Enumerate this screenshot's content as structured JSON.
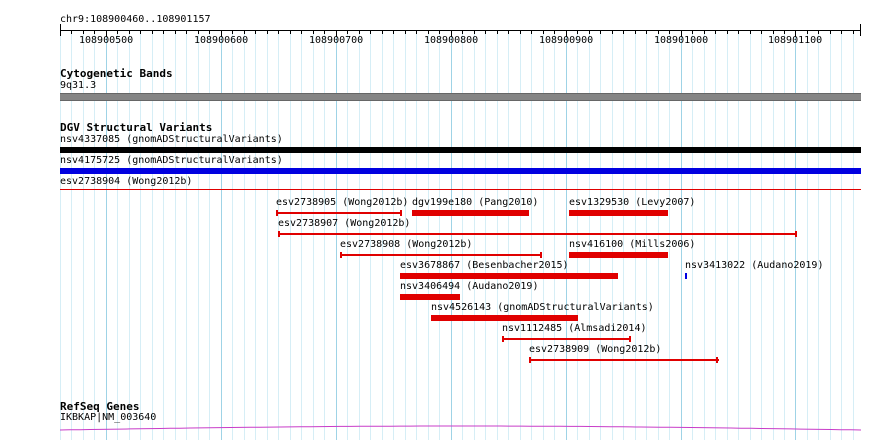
{
  "ruler": {
    "region_label": "chr9:108900460..108901157",
    "start": 108900460,
    "end": 108901157,
    "major_ticks": [
      108900500,
      108900600,
      108900700,
      108900800,
      108900900,
      108901000,
      108901100
    ],
    "major_tick_labels": [
      "108900500",
      "108900600",
      "108900700",
      "108900800",
      "108900900",
      "108901000",
      "108901100"
    ]
  },
  "tracks": {
    "cytoband": {
      "title": "Cytogenetic Bands",
      "band_label": "9q31.3",
      "band_color": "#858585"
    },
    "dgv": {
      "title": "DGV Structural Variants",
      "colors": {
        "loss": "#e00000",
        "gain": "#0000e0",
        "complex": "#000000",
        "loss_strong": "#ff0000"
      },
      "features": [
        {
          "id": "nsv4337085",
          "label": "nsv4337085 (gnomADStructuralVariants)",
          "start": 108900460,
          "end": 108901157,
          "color": "#000000",
          "style": "thick"
        },
        {
          "id": "nsv4175725",
          "label": "nsv4175725 (gnomADStructuralVariants)",
          "start": 108900460,
          "end": 108901157,
          "color": "#0000e0",
          "style": "thick"
        },
        {
          "id": "esv2738904",
          "label": "esv2738904 (Wong2012b)",
          "start": 108900460,
          "end": 108901157,
          "color": "#e00000",
          "style": "thin"
        },
        {
          "id": "esv2738905",
          "label": "esv2738905 (Wong2012b)",
          "start": 108900648,
          "end": 108900758,
          "color": "#e00000",
          "style": "thin"
        },
        {
          "id": "dgv199e180",
          "label": "dgv199e180 (Pang2010)",
          "start": 108900766,
          "end": 108900868,
          "color": "#e00000",
          "style": "thick"
        },
        {
          "id": "esv1329530",
          "label": "esv1329530 (Levy2007)",
          "start": 108900903,
          "end": 108900989,
          "color": "#e00000",
          "style": "thick"
        },
        {
          "id": "esv2738907",
          "label": "esv2738907 (Wong2012b)",
          "start": 108900650,
          "end": 108901101,
          "color": "#e00000",
          "style": "thin"
        },
        {
          "id": "esv2738908",
          "label": "esv2738908 (Wong2012b)",
          "start": 108900704,
          "end": 108900879,
          "color": "#e00000",
          "style": "thin"
        },
        {
          "id": "nsv416100",
          "label": "nsv416100 (Mills2006)",
          "start": 108900903,
          "end": 108900989,
          "color": "#e00000",
          "style": "thick"
        },
        {
          "id": "esv3678867",
          "label": "esv3678867 (Besenbacher2015)",
          "start": 108900756,
          "end": 108900946,
          "color": "#e00000",
          "style": "thick"
        },
        {
          "id": "nsv3413022",
          "label": "nsv3413022 (Audano2019)",
          "start": 108901004,
          "end": 108901006,
          "color": "#0000e0",
          "style": "point"
        },
        {
          "id": "nsv3406494",
          "label": "nsv3406494 (Audano2019)",
          "start": 108900756,
          "end": 108900808,
          "color": "#e00000",
          "style": "thick"
        },
        {
          "id": "nsv4526143",
          "label": "nsv4526143 (gnomADStructuralVariants)",
          "start": 108900783,
          "end": 108900911,
          "color": "#e00000",
          "style": "thick"
        },
        {
          "id": "nsv1112485",
          "label": "nsv1112485 (Almsadi2014)",
          "start": 108900845,
          "end": 108900957,
          "color": "#e00000",
          "style": "thin"
        },
        {
          "id": "esv2738909",
          "label": "esv2738909 (Wong2012b)",
          "start": 108900868,
          "end": 108901033,
          "color": "#e00000",
          "style": "thin"
        }
      ]
    },
    "refseq": {
      "title": "RefSeq Genes",
      "gene_label": "IKBKAP|NM_003640",
      "gene_color": "#c83cc8"
    }
  }
}
